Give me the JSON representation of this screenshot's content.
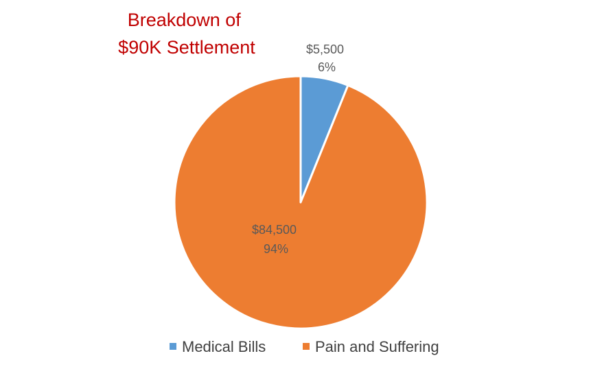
{
  "chart_data": {
    "type": "pie",
    "title_lines": [
      "Breakdown of",
      "$90K Settlement"
    ],
    "categories": [
      "Medical Bills",
      "Pain and Suffering"
    ],
    "values": [
      5500,
      84500
    ],
    "value_labels": [
      "$5,500",
      "$84,500"
    ],
    "percent_labels": [
      "6%",
      "94%"
    ],
    "colors": [
      "#5B9BD5",
      "#ED7D31"
    ],
    "title_color": "#C00000",
    "legend_position": "bottom"
  }
}
